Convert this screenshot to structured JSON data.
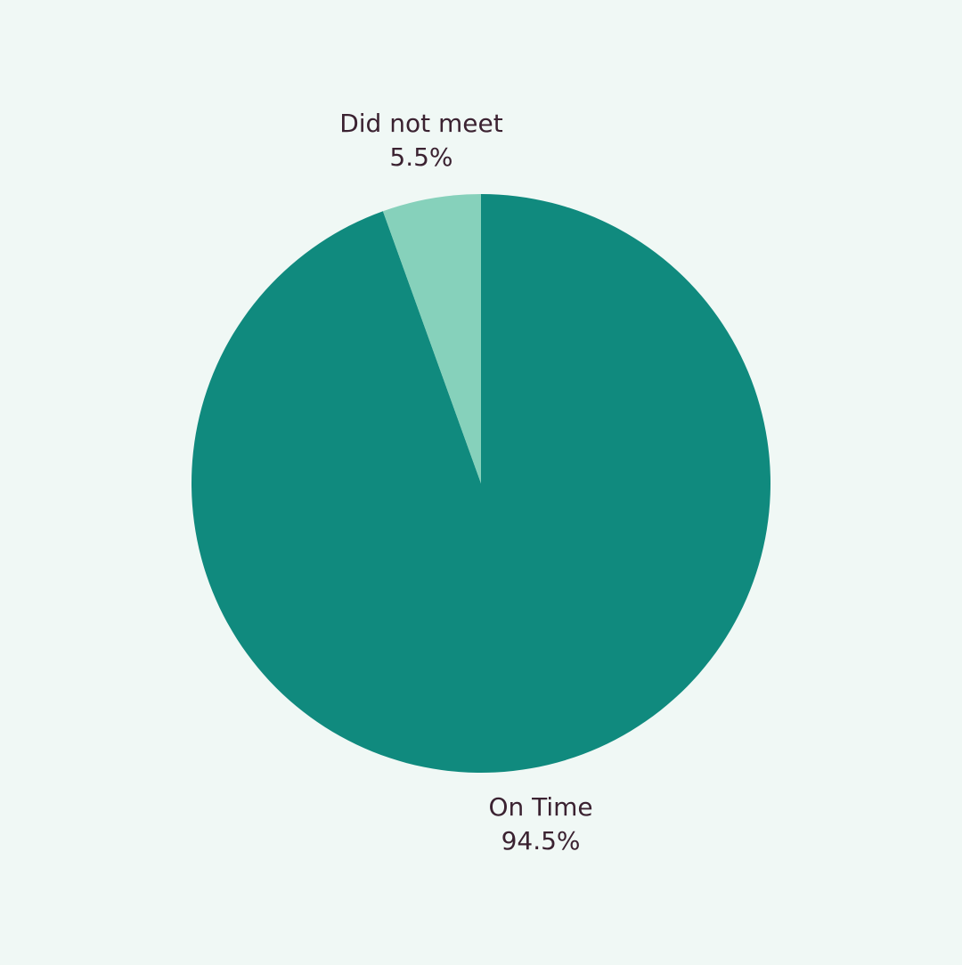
{
  "chart_data": {
    "type": "pie",
    "categories": [
      "On Time",
      "Did not meet"
    ],
    "values": [
      94.5,
      5.5
    ],
    "value_labels": [
      "94.5%",
      "5.5%"
    ],
    "colors": [
      "#108a7e",
      "#86d1bb"
    ]
  }
}
